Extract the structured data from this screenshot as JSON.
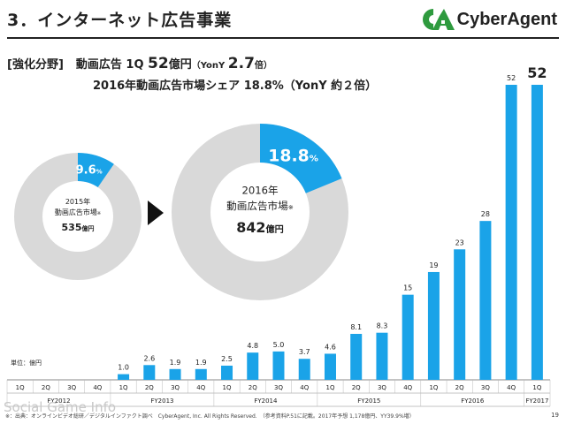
{
  "header": {
    "title": "3．インターネット広告事業",
    "brand": "CyberAgent"
  },
  "focus": {
    "tag": "[強化分野]",
    "line1_prefix": "動画広告 1Q ",
    "line1_value": "52",
    "line1_unit": "億円",
    "line1_yoy_prefix": "（YonY ",
    "line1_yoy_value": "2.7",
    "line1_yoy_suffix": "倍）",
    "line2": "2016年動画広告市場シェア 18.8%（YonY 約２倍）"
  },
  "donuts": [
    {
      "share_value": 9.6,
      "share_label": "9.6",
      "share_unit": "%",
      "title1": "2015年",
      "title2": "動画広告市場",
      "mark": "※",
      "amount": "535",
      "amount_unit": "億円"
    },
    {
      "share_value": 18.8,
      "share_label": "18.8",
      "share_unit": "%",
      "title1": "2016年",
      "title2": "動画広告市場",
      "mark": "※",
      "amount": "842",
      "amount_unit": "億円"
    }
  ],
  "colors": {
    "accent": "#1aa3e8",
    "ring": "#d9d9d9",
    "logo_green": "#2e9a3e",
    "grid": "#888888"
  },
  "chart_data": {
    "type": "bar",
    "unit_label": "単位：億円",
    "categories": [
      "1Q",
      "2Q",
      "3Q",
      "4Q",
      "1Q",
      "2Q",
      "3Q",
      "4Q",
      "1Q",
      "2Q",
      "3Q",
      "4Q",
      "1Q",
      "2Q",
      "3Q",
      "4Q",
      "1Q",
      "2Q",
      "3Q",
      "4Q",
      "1Q"
    ],
    "values": [
      null,
      null,
      null,
      null,
      1.0,
      2.6,
      1.9,
      1.9,
      2.5,
      4.8,
      5.0,
      3.7,
      4.6,
      8.1,
      8.3,
      15,
      19,
      23,
      28,
      52,
      52
    ],
    "value_labels": [
      "",
      "",
      "",
      "",
      "1.0",
      "2.6",
      "1.9",
      "1.9",
      "2.5",
      "4.8",
      "5.0",
      "3.7",
      "4.6",
      "8.1",
      "8.3",
      "15",
      "19",
      "23",
      "28",
      "52",
      "52"
    ],
    "fiscal_years": [
      {
        "label": "FY2012",
        "start": 0,
        "count": 4
      },
      {
        "label": "FY2013",
        "start": 4,
        "count": 4
      },
      {
        "label": "FY2014",
        "start": 8,
        "count": 4
      },
      {
        "label": "FY2015",
        "start": 12,
        "count": 4
      },
      {
        "label": "FY2016",
        "start": 16,
        "count": 4
      },
      {
        "label": "FY2017",
        "start": 20,
        "count": 1
      }
    ]
  },
  "footnote": "※：出典：オンラインビデオ総研／デジタルインファクト調べ　CyberAgent, Inc. All Rights Reserved.　（参考資料P.51に記載。2017年予想 1,178億円、YY39.9%増）",
  "page_number": "19",
  "watermark": "Social Game Info"
}
